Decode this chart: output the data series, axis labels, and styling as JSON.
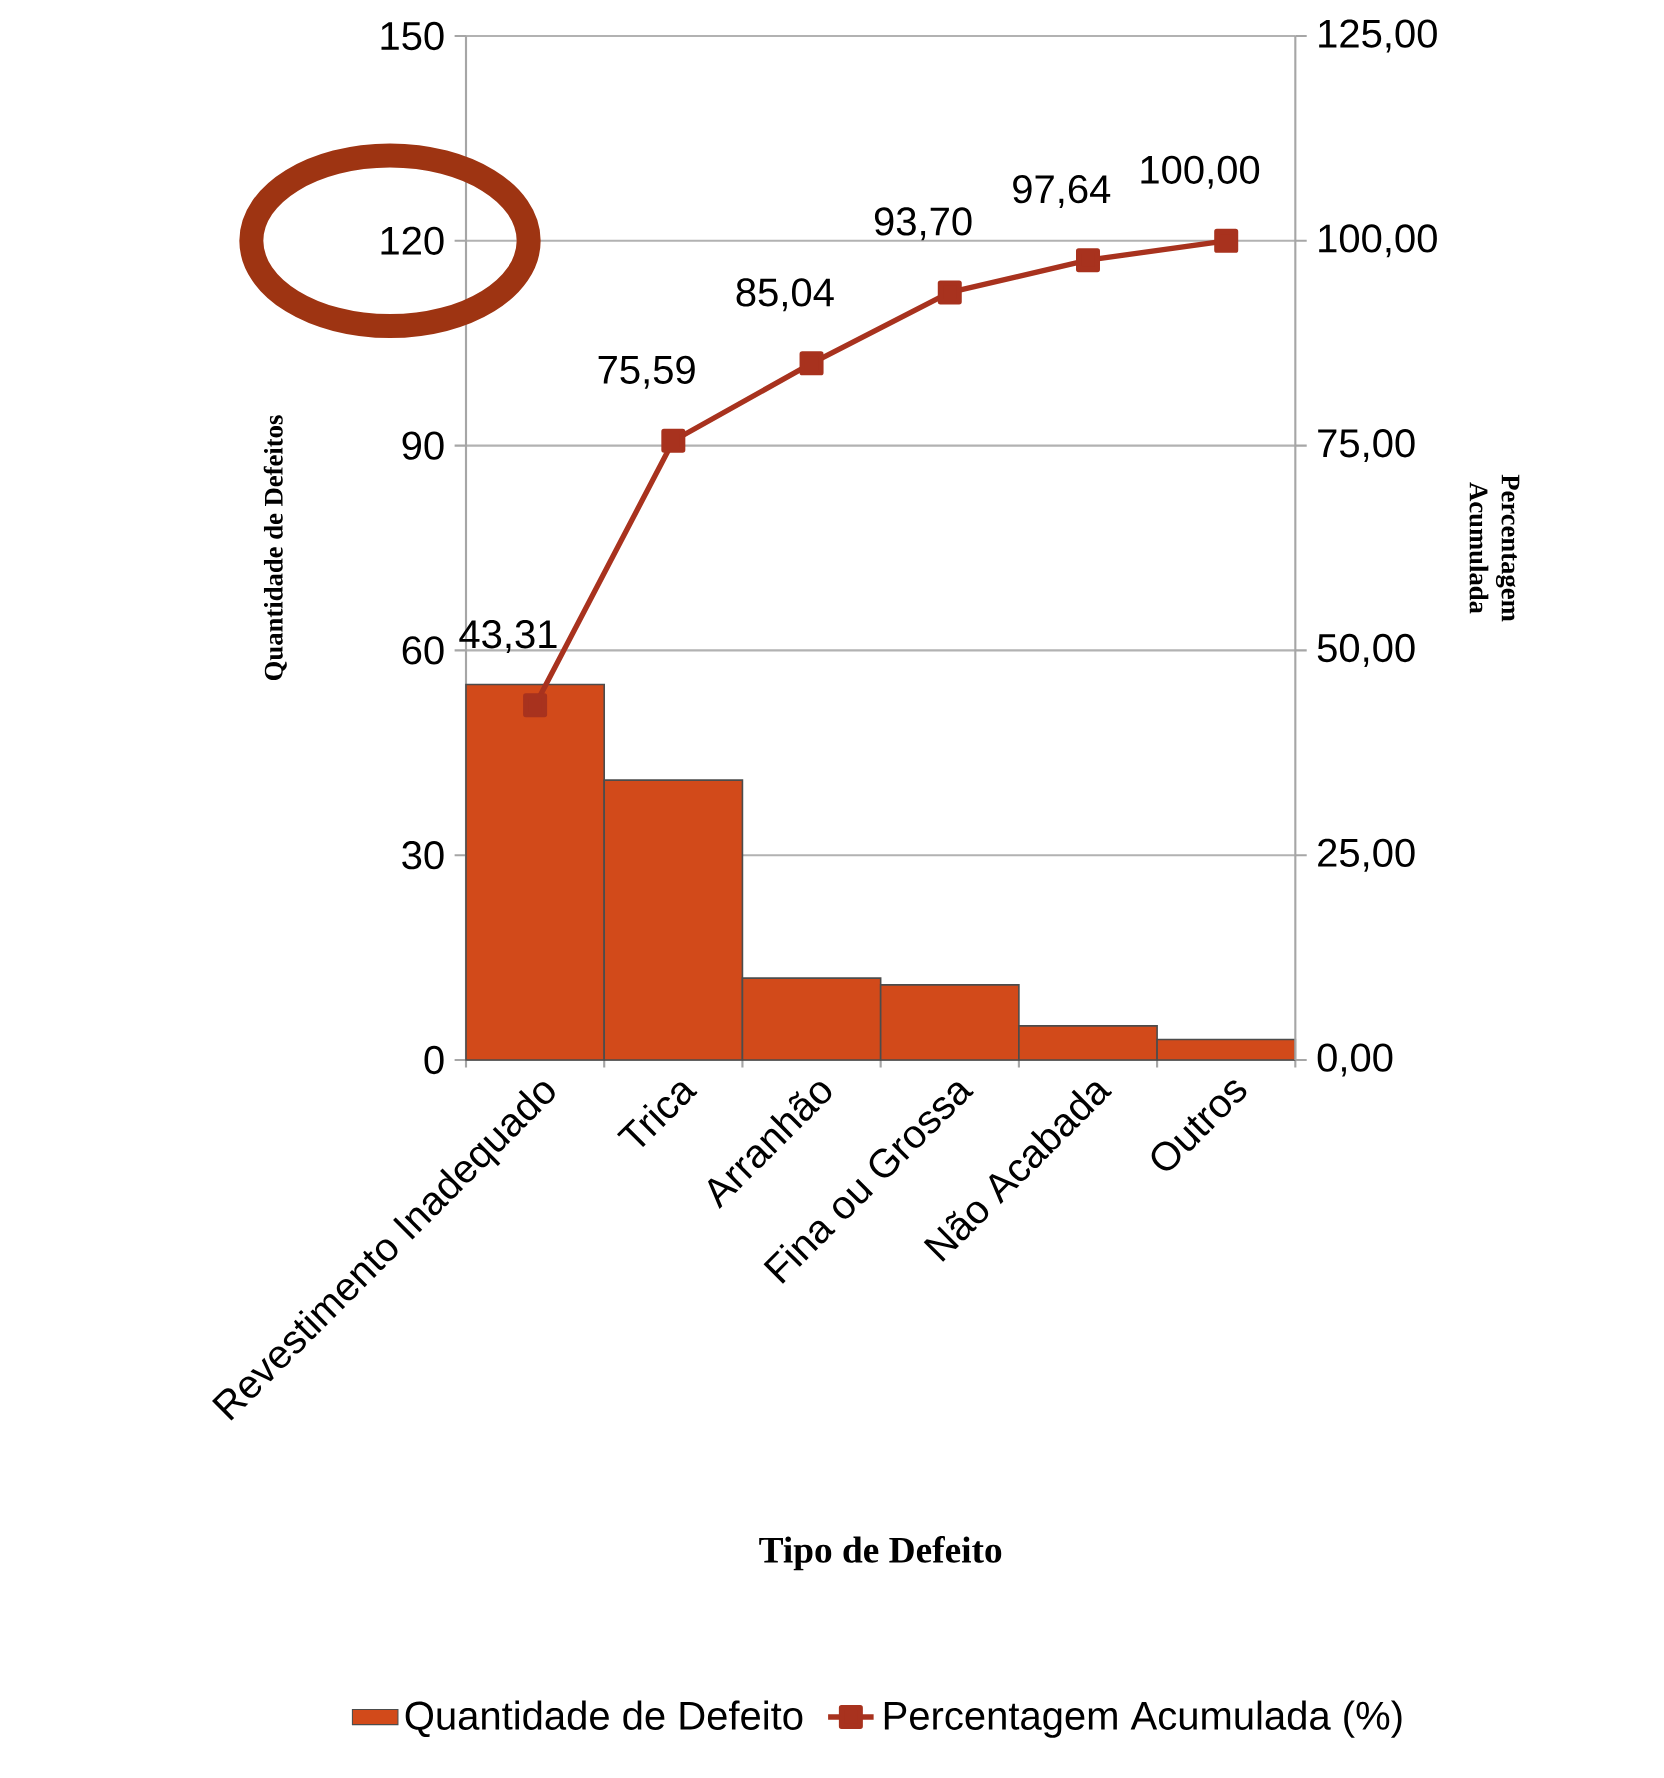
{
  "chart_data": {
    "type": "bar",
    "xlabel": "Tipo de Defeito",
    "ylabel": "Quantidade de Defeitos",
    "y2label": "Percentagem Acumulada",
    "categories": [
      "Revestimento Inadequado",
      "Trica",
      "Arranhão",
      "Fina ou Grossa",
      "Não Acabada",
      "Outros"
    ],
    "series": [
      {
        "name": "Quantidade de Defeito",
        "type": "bar",
        "color": "#d24a1a",
        "values": [
          55,
          41,
          12,
          11,
          5,
          3
        ]
      },
      {
        "name": "Percentagem Acumulada (%)",
        "type": "line",
        "axis": "y2",
        "color": "#a8321e",
        "marker": "square",
        "values": [
          43.31,
          75.59,
          85.04,
          93.7,
          97.64,
          100.0
        ],
        "value_labels": [
          "43,31",
          "75,59",
          "85,04",
          "93,70",
          "97,64",
          "100,00"
        ]
      }
    ],
    "ylim": [
      0,
      150
    ],
    "yticks": [
      0,
      30,
      60,
      90,
      120,
      150
    ],
    "y2lim": [
      0,
      125
    ],
    "y2ticks": [
      {
        "value": 0,
        "label": "0,00"
      },
      {
        "value": 25,
        "label": "25,00"
      },
      {
        "value": 50,
        "label": "50,00"
      },
      {
        "value": 75,
        "label": "75,00"
      },
      {
        "value": 100,
        "label": "100,00"
      },
      {
        "value": 125,
        "label": "125,00"
      }
    ],
    "grid": "y",
    "legend": "bottom"
  }
}
